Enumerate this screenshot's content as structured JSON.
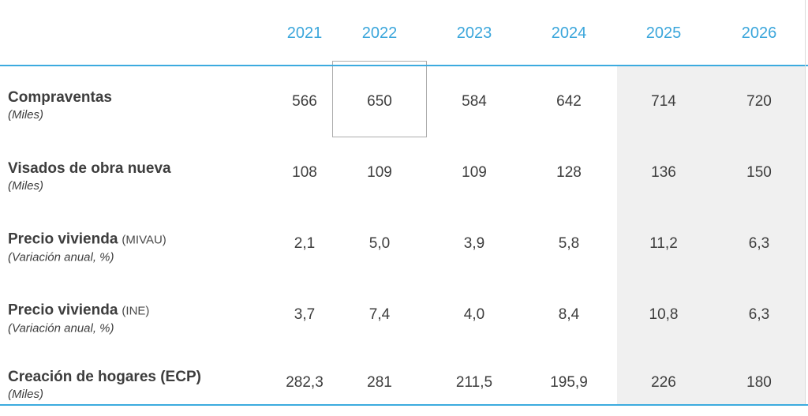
{
  "style": {
    "accent_blue": "#3BA6DB",
    "rule_blue": "#3CABDF",
    "forecast_bg": "#F0F0F0",
    "text_dark": "#3D3D3D",
    "highlight_border": "#ADADAD"
  },
  "chart_data": {
    "type": "table",
    "title": "",
    "columns": [
      "2021",
      "2022",
      "2023",
      "2024",
      "2025",
      "2026"
    ],
    "forecast_columns": [
      "2025",
      "2026"
    ],
    "rows": [
      {
        "label": "Compraventas",
        "label_note": "",
        "unit": "(Miles)",
        "values": [
          "566",
          "650",
          "584",
          "642",
          "714",
          "720"
        ]
      },
      {
        "label": "Visados de obra nueva",
        "label_note": "",
        "unit": "(Miles)",
        "values": [
          "108",
          "109",
          "109",
          "128",
          "136",
          "150"
        ]
      },
      {
        "label": "Precio vivienda",
        "label_note": "(MIVAU)",
        "unit": "(Variación anual, %)",
        "values": [
          "2,1",
          "5,0",
          "3,9",
          "5,8",
          "11,2",
          "6,3"
        ]
      },
      {
        "label": "Precio vivienda",
        "label_note": "(INE)",
        "unit": "(Variación anual, %)",
        "values": [
          "3,7",
          "7,4",
          "4,0",
          "8,4",
          "10,8",
          "6,3"
        ]
      },
      {
        "label": "Creación de hogares (ECP)",
        "label_note": "",
        "unit": "(Miles)",
        "values": [
          "282,3",
          "281",
          "211,5",
          "195,9",
          "226",
          "180"
        ]
      }
    ],
    "highlighted_cell": {
      "row": "Compraventas",
      "column": "2022",
      "value": "650"
    }
  }
}
